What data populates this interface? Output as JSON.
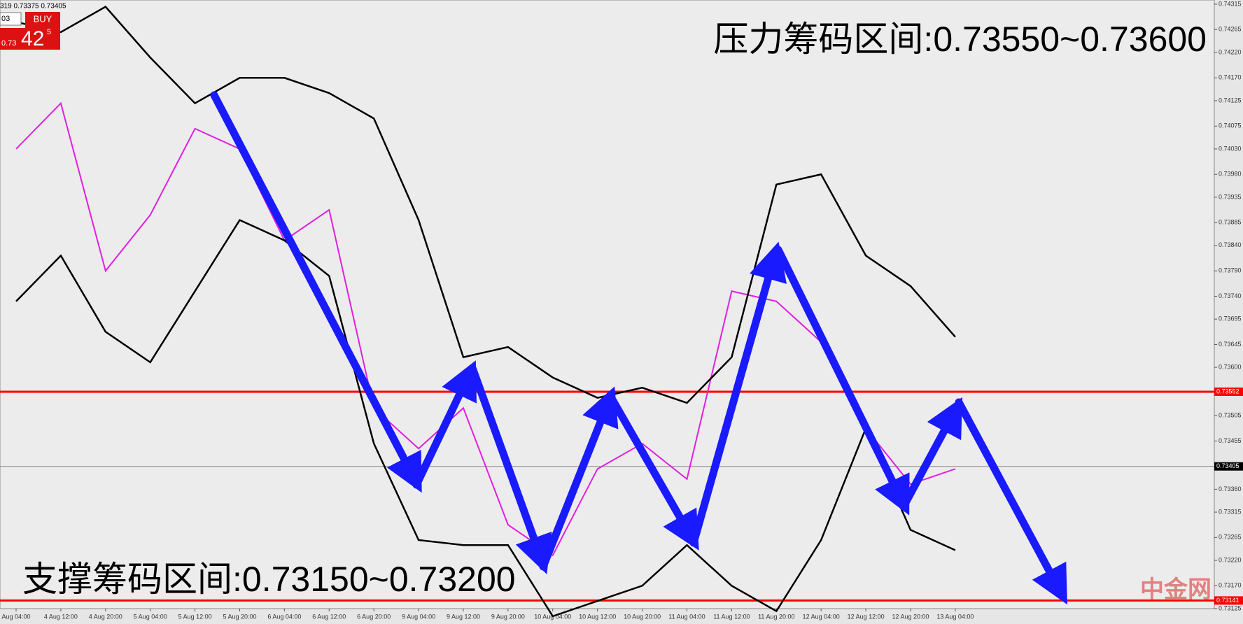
{
  "header": {
    "quote": "319 0.73375 0.73405",
    "lots": "03",
    "buy": "BUY",
    "bid_prefix": "0.73",
    "bid_big": "42",
    "bid_sup": "5"
  },
  "annotations": {
    "resistance": "压力筹码区间:0.73550~0.73600",
    "support": "支撑筹码区间:0.73150~0.73200",
    "watermark": "中金网"
  },
  "chart_data": {
    "type": "line",
    "categories": [
      "Aug 04:00",
      "4 Aug 12:00",
      "4 Aug 20:00",
      "5 Aug 04:00",
      "5 Aug 12:00",
      "5 Aug 20:00",
      "6 Aug 04:00",
      "6 Aug 12:00",
      "6 Aug 20:00",
      "9 Aug 04:00",
      "9 Aug 12:00",
      "9 Aug 20:00",
      "10 Aug 04:00",
      "10 Aug 12:00",
      "10 Aug 20:00",
      "11 Aug 04:00",
      "11 Aug 12:00",
      "11 Aug 20:00",
      "12 Aug 04:00",
      "12 Aug 12:00",
      "12 Aug 20:00",
      "13 Aug 04:00"
    ],
    "series": [
      {
        "name": "close",
        "color": "#e020e0",
        "values": [
          0.7403,
          0.7412,
          0.7379,
          0.739,
          0.7407,
          0.7403,
          0.7385,
          0.7391,
          0.7352,
          0.7344,
          0.7352,
          0.7329,
          0.7323,
          0.734,
          0.7345,
          0.7338,
          0.7375,
          0.7373,
          0.7365,
          0.7348,
          0.7337,
          0.734
        ]
      },
      {
        "name": "upper band",
        "color": "#000000",
        "values": [
          0.7428,
          0.7426,
          0.7431,
          0.7421,
          0.7412,
          0.7417,
          0.7417,
          0.7414,
          0.7409,
          0.7389,
          0.7362,
          0.7364,
          0.7358,
          0.7354,
          0.7356,
          0.7353,
          0.7362,
          0.7396,
          0.7398,
          0.7382,
          0.7376,
          0.7366
        ]
      },
      {
        "name": "lower band",
        "color": "#000000",
        "values": [
          0.7373,
          0.7382,
          0.7367,
          0.7361,
          0.7375,
          0.7389,
          0.7385,
          0.7378,
          0.7345,
          0.7326,
          0.7325,
          0.7325,
          0.7311,
          0.7314,
          0.7317,
          0.7325,
          0.7317,
          0.7312,
          0.7326,
          0.7348,
          0.7328,
          0.7324
        ]
      }
    ],
    "ylim": [
      0.73125,
      0.74315
    ],
    "yticks": [
      {
        "value": 0.74315,
        "label": "0.74315"
      },
      {
        "value": 0.74265,
        "label": "0.74265"
      },
      {
        "value": 0.7422,
        "label": "0.74220"
      },
      {
        "value": 0.7417,
        "label": "0.74170"
      },
      {
        "value": 0.74125,
        "label": "0.74125"
      },
      {
        "value": 0.74075,
        "label": "0.74075"
      },
      {
        "value": 0.7403,
        "label": "0.74030"
      },
      {
        "value": 0.7398,
        "label": "0.73980"
      },
      {
        "value": 0.73935,
        "label": "0.73935"
      },
      {
        "value": 0.73885,
        "label": "0.73885"
      },
      {
        "value": 0.7384,
        "label": "0.73840"
      },
      {
        "value": 0.7379,
        "label": "0.73790"
      },
      {
        "value": 0.7374,
        "label": "0.73740"
      },
      {
        "value": 0.73695,
        "label": "0.73695"
      },
      {
        "value": 0.73645,
        "label": "0.73645"
      },
      {
        "value": 0.736,
        "label": "0.73600"
      },
      {
        "value": 0.73505,
        "label": "0.73505"
      },
      {
        "value": 0.73455,
        "label": "0.73455"
      },
      {
        "value": 0.7336,
        "label": "0.73360"
      },
      {
        "value": 0.73315,
        "label": "0.73315"
      },
      {
        "value": 0.73265,
        "label": "0.73265"
      },
      {
        "value": 0.7322,
        "label": "0.73220"
      },
      {
        "value": 0.7317,
        "label": "0.73170"
      },
      {
        "value": 0.73125,
        "label": "0.73125"
      }
    ],
    "levels": [
      {
        "value": 0.73552,
        "label": "0.73552",
        "color": "#ff0000"
      },
      {
        "value": 0.73405,
        "label": "0.73405",
        "color": "#888888"
      },
      {
        "value": 0.73141,
        "label": "0.73141",
        "color": "#ff0000"
      }
    ]
  }
}
